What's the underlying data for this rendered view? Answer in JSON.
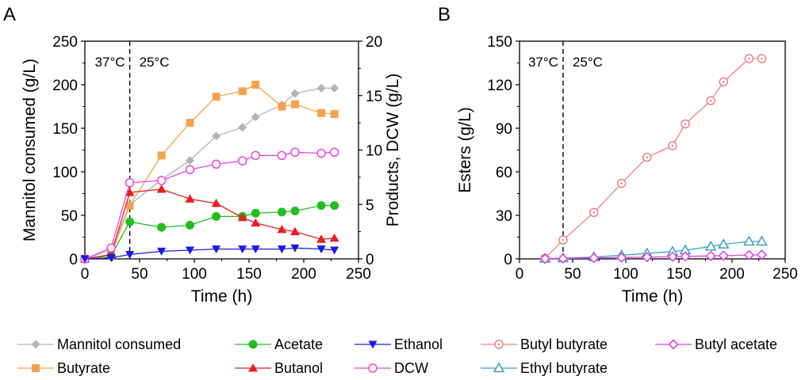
{
  "chart_data": [
    {
      "type": "line",
      "panel_label": "A",
      "xlabel": "Time (h)",
      "ylabel": "Mannitol consumed (g/L)",
      "y2label": "Products, DCW (g/L)",
      "xlim": [
        0,
        250
      ],
      "ylim": [
        0,
        250
      ],
      "y2lim": [
        0,
        20
      ],
      "xticks": [
        "0",
        "50",
        "100",
        "150",
        "200",
        "250"
      ],
      "yticks": [
        "0",
        "50",
        "100",
        "150",
        "200",
        "250"
      ],
      "y2ticks": [
        "0",
        "5",
        "10",
        "15",
        "20"
      ],
      "annotations": {
        "before": "37°C",
        "after": "25°C",
        "divider_x": 41
      },
      "series": [
        {
          "name": "Mannitol consumed",
          "axis": "left",
          "marker": "diamond",
          "color": "#b4b4b4",
          "x": [
            0,
            24,
            41,
            70,
            96,
            120,
            144,
            156,
            180,
            192,
            216,
            228
          ],
          "y": [
            0,
            10,
            62,
            91,
            113,
            141,
            151,
            163,
            177,
            190,
            196,
            196
          ]
        },
        {
          "name": "Butyrate",
          "axis": "right",
          "marker": "square",
          "color": "#f5a350",
          "x": [
            0,
            24,
            41,
            70,
            96,
            120,
            144,
            156,
            180,
            192,
            216,
            228
          ],
          "y": [
            0,
            0.4,
            4.9,
            9.5,
            12.5,
            14.9,
            15.4,
            16.0,
            14.0,
            14.2,
            13.4,
            13.3
          ]
        },
        {
          "name": "Acetate",
          "axis": "right",
          "marker": "circle",
          "color": "#1fbf1f",
          "x": [
            0,
            24,
            41,
            70,
            96,
            120,
            144,
            156,
            180,
            192,
            216,
            228
          ],
          "y": [
            0,
            0.3,
            3.4,
            2.9,
            3.1,
            3.9,
            3.9,
            4.2,
            4.3,
            4.4,
            4.9,
            4.9
          ]
        },
        {
          "name": "Butanol",
          "axis": "right",
          "marker": "triangle-up",
          "color": "#e81f1f",
          "x": [
            0,
            24,
            41,
            70,
            96,
            120,
            144,
            156,
            180,
            192,
            216,
            228
          ],
          "y": [
            0,
            0.4,
            6.1,
            6.4,
            5.5,
            5.1,
            3.8,
            3.3,
            2.7,
            2.5,
            1.8,
            1.9
          ]
        },
        {
          "name": "DCW",
          "axis": "right",
          "marker": "circle-open",
          "color": "#ee44dd",
          "x": [
            0,
            24,
            41,
            70,
            96,
            120,
            144,
            156,
            180,
            192,
            216,
            228
          ],
          "y": [
            0,
            1.0,
            7.0,
            7.2,
            8.2,
            8.7,
            9.0,
            9.5,
            9.5,
            9.8,
            9.7,
            9.8
          ]
        },
        {
          "name": "Ethanol",
          "axis": "right",
          "marker": "triangle-down",
          "color": "#1a1ae6",
          "x": [
            0,
            24,
            41,
            70,
            96,
            120,
            144,
            156,
            180,
            192,
            216,
            228
          ],
          "y": [
            0,
            0.1,
            0.4,
            0.7,
            0.8,
            0.9,
            0.9,
            0.9,
            0.9,
            1.0,
            0.9,
            0.8
          ]
        }
      ]
    },
    {
      "type": "line",
      "panel_label": "B",
      "xlabel": "Time (h)",
      "ylabel": "Esters (g/L)",
      "xlim": [
        0,
        250
      ],
      "ylim": [
        0,
        150
      ],
      "xticks": [
        "0",
        "50",
        "100",
        "150",
        "200",
        "250"
      ],
      "yticks": [
        "0",
        "30",
        "60",
        "90",
        "120",
        "150"
      ],
      "annotations": {
        "before": "37°C",
        "after": "25°C",
        "divider_x": 41
      },
      "series": [
        {
          "name": "Butyl butyrate",
          "marker": "circle-dot",
          "color": "#f08080",
          "x": [
            24,
            41,
            70,
            96,
            120,
            144,
            156,
            180,
            192,
            216,
            228
          ],
          "y": [
            0.5,
            13,
            32,
            52,
            70,
            78,
            93,
            109,
            122,
            138,
            138
          ]
        },
        {
          "name": "Ethyl butyrate",
          "marker": "triangle-open",
          "color": "#3b9fc4",
          "x": [
            24,
            41,
            70,
            96,
            120,
            144,
            156,
            180,
            192,
            216,
            228
          ],
          "y": [
            0.2,
            0.5,
            1.2,
            2.5,
            3.8,
            5.0,
            6.0,
            8.5,
            10.0,
            12.0,
            12.0
          ]
        },
        {
          "name": "Butyl acetate",
          "marker": "diamond-open",
          "color": "#e040e0",
          "x": [
            24,
            41,
            70,
            96,
            120,
            144,
            156,
            180,
            192,
            216,
            228
          ],
          "y": [
            0.1,
            0.2,
            0.6,
            0.9,
            1.2,
            1.5,
            1.7,
            2.0,
            2.2,
            2.6,
            2.8
          ]
        }
      ]
    }
  ],
  "legend": [
    {
      "label": "Mannitol consumed",
      "marker": "diamond",
      "color": "#b4b4b4"
    },
    {
      "label": "Acetate",
      "marker": "circle",
      "color": "#1fbf1f"
    },
    {
      "label": "Ethanol",
      "marker": "triangle-down",
      "color": "#1a1ae6"
    },
    {
      "label": "Butyl butyrate",
      "marker": "circle-dot",
      "color": "#f08080"
    },
    {
      "label": "Butyl acetate",
      "marker": "diamond-open",
      "color": "#e040e0"
    },
    {
      "label": "Butyrate",
      "marker": "square",
      "color": "#f5a350"
    },
    {
      "label": "Butanol",
      "marker": "triangle-up",
      "color": "#e81f1f"
    },
    {
      "label": "DCW",
      "marker": "circle-open",
      "color": "#ee44dd"
    },
    {
      "label": "Ethyl butyrate",
      "marker": "triangle-open",
      "color": "#3b9fc4"
    }
  ]
}
